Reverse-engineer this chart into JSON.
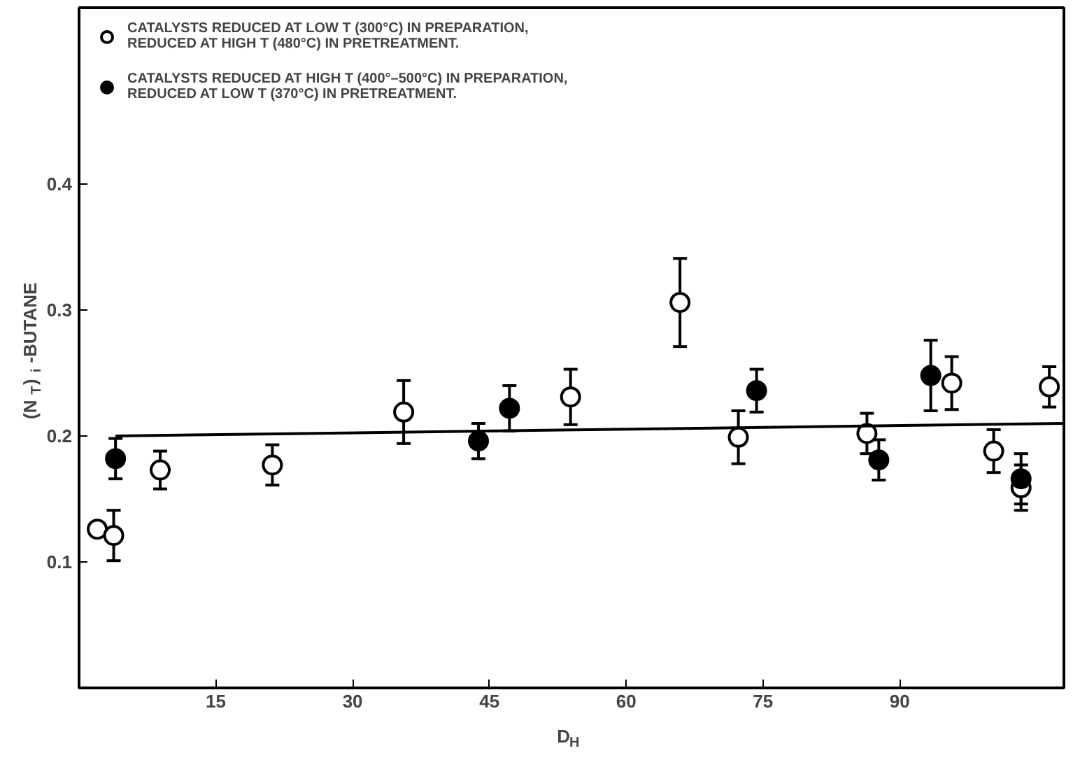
{
  "chart_data": {
    "type": "scatter",
    "xlabel": "D$_{H}$",
    "ylabel": "(N$_{T}$)$_{i}$-BUTANE",
    "xlim": [
      0,
      108
    ],
    "ylim": [
      0,
      0.54
    ],
    "xticks": [
      15,
      30,
      45,
      60,
      75,
      90
    ],
    "yticks": [
      0.1,
      0.2,
      0.3,
      0.4
    ],
    "legend": "top left",
    "grid": false,
    "marker": "circle",
    "series": [
      {
        "name": "CATALYSTS REDUCED AT LOW T (300°C) IN PREPARATION,\nREDUCED AT HIGH T (480°C) IN PRETREATMENT.",
        "color": "#ffffff",
        "x": [
          2.0,
          3.8,
          8.9,
          21.2,
          35.6,
          53.9,
          65.9,
          72.3,
          86.4,
          95.7,
          100.3,
          103.3,
          106.4
        ],
        "values": [
          0.126,
          0.121,
          0.173,
          0.177,
          0.219,
          0.231,
          0.306,
          0.199,
          0.202,
          0.242,
          0.188,
          0.159,
          0.239
        ],
        "errors": [
          null,
          0.02,
          0.015,
          0.016,
          0.025,
          0.022,
          0.035,
          0.021,
          0.016,
          0.021,
          0.017,
          0.018,
          0.016
        ]
      },
      {
        "name": "CATALYSTS REDUCED AT HIGH T (400°–500°C) IN PREPARATION,\nREDUCED AT LOW T (370°C) IN PRETREATMENT.",
        "color": "#000000",
        "x": [
          4.0,
          43.8,
          47.2,
          74.3,
          87.7,
          93.4,
          103.3
        ],
        "values": [
          0.182,
          0.196,
          0.222,
          0.236,
          0.181,
          0.248,
          0.166
        ],
        "errors": [
          0.016,
          0.014,
          0.018,
          0.017,
          0.016,
          0.028,
          0.02
        ]
      },
      {
        "type": "line",
        "marker": "none",
        "color": "#000000",
        "x": [
          4,
          108
        ],
        "values": [
          0.2,
          0.21
        ]
      }
    ]
  }
}
